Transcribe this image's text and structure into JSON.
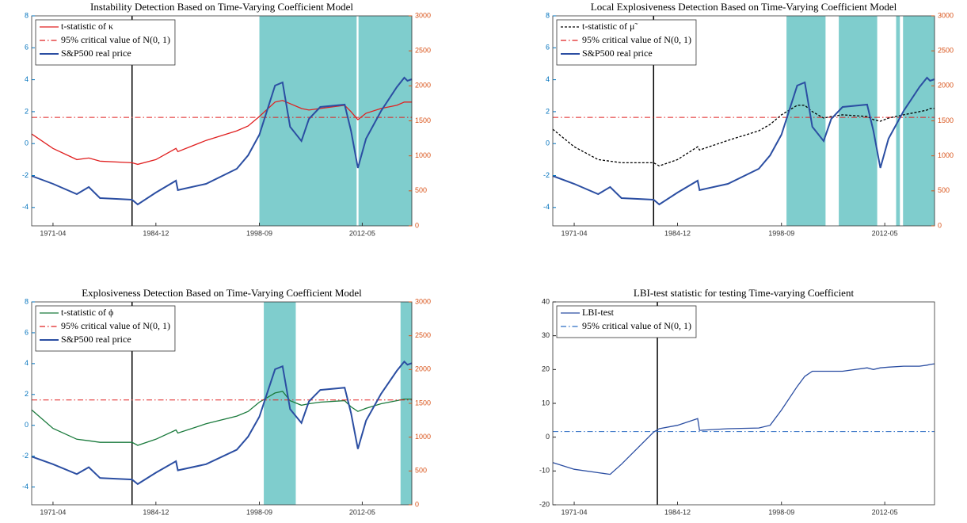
{
  "chart_data": [
    {
      "type": "line",
      "title": "Instability Detection Based on Time-Varying Coefficient Model",
      "x": [
        "1968-06",
        "1971-04",
        "1974-06",
        "1976-01",
        "1977-07",
        "1981-10",
        "1982-07",
        "1984-12",
        "1987-08",
        "1987-11",
        "1991-08",
        "1995-09",
        "1997-03",
        "1998-09",
        "2000-10",
        "2001-10",
        "2002-10",
        "2004-04",
        "2005-04",
        "2006-10",
        "2010-01",
        "2010-11",
        "2011-10",
        "2012-11",
        "2014-11",
        "2016-12",
        "2017-12",
        "2018-05",
        "2018-12"
      ],
      "xlim": [
        "1968-06",
        "2018-12"
      ],
      "xticks": [
        "1971-04",
        "1984-12",
        "1998-09",
        "2012-05"
      ],
      "ylim": [
        -5.15,
        8
      ],
      "yticks": [
        -4,
        -2,
        0,
        2,
        4,
        6,
        8
      ],
      "y2lim": [
        0,
        3000
      ],
      "y2ticks": [
        0,
        500,
        1000,
        1500,
        2000,
        2500,
        3000
      ],
      "left_axis_color": "#0072bd",
      "right_axis_color": "#d95319",
      "vline": "1981-10",
      "shade_color": "#7fcdcd",
      "shaded": [
        [
          "1998-09",
          "2011-08"
        ],
        [
          "2011-11",
          "2018-12"
        ]
      ],
      "series": [
        {
          "name": "t-statistic of κ",
          "color": "#e02020",
          "values": [
            0.6,
            -0.3,
            -1.0,
            -0.9,
            -1.1,
            -1.2,
            -1.3,
            -1.0,
            -0.3,
            -0.5,
            0.2,
            0.8,
            1.1,
            1.7,
            2.6,
            2.7,
            2.5,
            2.2,
            2.1,
            2.2,
            2.4,
            2.0,
            1.5,
            1.9,
            2.2,
            2.4,
            2.6,
            2.6,
            2.6
          ]
        },
        {
          "name": "95% critical value of N(0, 1)",
          "color": "#e02020",
          "style": "dashdot",
          "value": 1.645
        },
        {
          "name": "S&P500 real price",
          "color": "#2b4ea2",
          "axis": "y2",
          "values": [
            713,
            600,
            453,
            555,
            396,
            374,
            306,
            475,
            645,
            510,
            600,
            815,
            1008,
            1302,
            2004,
            2049,
            1415,
            1211,
            1528,
            1698,
            1732,
            1358,
            826,
            1245,
            1642,
            1981,
            2117,
            2072,
            2094
          ]
        }
      ]
    },
    {
      "type": "line",
      "title": "Local Explosiveness Detection Based on Time-Varying Coefficient Model",
      "x": [
        "1968-06",
        "1971-04",
        "1974-06",
        "1976-01",
        "1977-07",
        "1981-10",
        "1982-07",
        "1984-12",
        "1987-08",
        "1987-11",
        "1991-08",
        "1995-09",
        "1997-03",
        "1998-09",
        "2000-10",
        "2001-10",
        "2002-10",
        "2004-04",
        "2005-04",
        "2006-10",
        "2010-01",
        "2010-11",
        "2011-10",
        "2012-11",
        "2014-11",
        "2016-12",
        "2017-12",
        "2018-05",
        "2018-12"
      ],
      "xlim": [
        "1968-06",
        "2018-12"
      ],
      "xticks": [
        "1971-04",
        "1984-12",
        "1998-09",
        "2012-05"
      ],
      "ylim": [
        -5.15,
        8
      ],
      "yticks": [
        -4,
        -2,
        0,
        2,
        4,
        6,
        8
      ],
      "y2lim": [
        0,
        3000
      ],
      "y2ticks": [
        0,
        500,
        1000,
        1500,
        2000,
        2500,
        3000
      ],
      "left_axis_color": "#0072bd",
      "right_axis_color": "#d95319",
      "vline": "1981-10",
      "shade_color": "#7fcdcd",
      "shaded": [
        [
          "1999-05",
          "2004-07"
        ],
        [
          "2006-04",
          "2011-05"
        ],
        [
          "2013-11",
          "2014-05"
        ],
        [
          "2014-10",
          "2018-12"
        ]
      ],
      "series": [
        {
          "name": "t-statistic of μ̃",
          "color": "#000000",
          "style": "dashed",
          "values": [
            0.9,
            -0.2,
            -1.0,
            -1.1,
            -1.2,
            -1.2,
            -1.4,
            -1.0,
            -0.2,
            -0.4,
            0.2,
            0.8,
            1.2,
            1.8,
            2.4,
            2.4,
            2.0,
            1.6,
            1.7,
            1.8,
            1.7,
            1.5,
            1.4,
            1.6,
            1.8,
            2.0,
            2.1,
            2.2,
            2.2
          ]
        },
        {
          "name": "95% critical value of N(0, 1)",
          "color": "#e02020",
          "style": "dashdot",
          "value": 1.645
        },
        {
          "name": "S&P500 real price",
          "color": "#2b4ea2",
          "axis": "y2",
          "values": [
            713,
            600,
            453,
            555,
            396,
            374,
            306,
            475,
            645,
            510,
            600,
            815,
            1008,
            1302,
            2004,
            2049,
            1415,
            1211,
            1528,
            1698,
            1732,
            1358,
            826,
            1245,
            1642,
            1981,
            2117,
            2072,
            2094
          ]
        }
      ]
    },
    {
      "type": "line",
      "title": "Explosiveness Detection Based on Time-Varying Coefficient Model",
      "x": [
        "1968-06",
        "1971-04",
        "1974-06",
        "1976-01",
        "1977-07",
        "1981-10",
        "1982-07",
        "1984-12",
        "1987-08",
        "1987-11",
        "1991-08",
        "1995-09",
        "1997-03",
        "1998-09",
        "2000-10",
        "2001-10",
        "2002-10",
        "2004-04",
        "2005-04",
        "2006-10",
        "2010-01",
        "2010-11",
        "2011-10",
        "2012-11",
        "2014-11",
        "2016-12",
        "2017-12",
        "2018-05",
        "2018-12"
      ],
      "xlim": [
        "1968-06",
        "2018-12"
      ],
      "xticks": [
        "1971-04",
        "1984-12",
        "1998-09",
        "2012-05"
      ],
      "ylim": [
        -5.15,
        8
      ],
      "yticks": [
        -4,
        -2,
        0,
        2,
        4,
        6,
        8
      ],
      "y2lim": [
        0,
        3000
      ],
      "y2ticks": [
        0,
        500,
        1000,
        1500,
        2000,
        2500,
        3000
      ],
      "left_axis_color": "#0072bd",
      "right_axis_color": "#d95319",
      "vline": "1981-10",
      "shade_color": "#7fcdcd",
      "shaded": [
        [
          "1999-04",
          "2003-07"
        ],
        [
          "2017-06",
          "2018-12"
        ]
      ],
      "series": [
        {
          "name": "t-statistic of ϕ",
          "color": "#1a7a3c",
          "values": [
            1.0,
            -0.2,
            -0.9,
            -1.0,
            -1.1,
            -1.1,
            -1.3,
            -0.9,
            -0.3,
            -0.5,
            0.1,
            0.6,
            0.9,
            1.5,
            2.1,
            2.2,
            1.6,
            1.3,
            1.4,
            1.5,
            1.6,
            1.2,
            0.9,
            1.1,
            1.4,
            1.6,
            1.7,
            1.7,
            1.7
          ]
        },
        {
          "name": "95% critical value of N(0, 1)",
          "color": "#e02020",
          "style": "dashdot",
          "value": 1.645
        },
        {
          "name": "S&P500 real price",
          "color": "#2b4ea2",
          "axis": "y2",
          "values": [
            713,
            600,
            453,
            555,
            396,
            374,
            306,
            475,
            645,
            510,
            600,
            815,
            1008,
            1302,
            2004,
            2049,
            1415,
            1211,
            1528,
            1698,
            1732,
            1358,
            826,
            1245,
            1642,
            1981,
            2117,
            2072,
            2094
          ]
        }
      ]
    },
    {
      "type": "line",
      "title": "LBI-test statistic for testing Time-varying Coefficient",
      "x": [
        "1968-06",
        "1971-04",
        "1974-06",
        "1976-01",
        "1977-07",
        "1981-10",
        "1982-07",
        "1984-12",
        "1987-08",
        "1987-11",
        "1991-08",
        "1995-09",
        "1997-03",
        "1998-09",
        "2000-10",
        "2001-10",
        "2002-10",
        "2004-04",
        "2005-04",
        "2006-10",
        "2010-01",
        "2010-11",
        "2011-10",
        "2012-11",
        "2014-11",
        "2016-12",
        "2017-12",
        "2018-05",
        "2018-12"
      ],
      "xlim": [
        "1968-06",
        "2018-12"
      ],
      "xticks": [
        "1971-04",
        "1984-12",
        "1998-09",
        "2012-05"
      ],
      "ylim": [
        -20,
        40
      ],
      "yticks": [
        -20,
        -10,
        0,
        10,
        20,
        30,
        40
      ],
      "left_axis_color": "#222222",
      "vline": "1982-04",
      "series": [
        {
          "name": "LBI-test",
          "color": "#2b4ea2",
          "values": [
            -7.5,
            -9.5,
            -10.5,
            -11,
            -8,
            1.5,
            2.5,
            3.5,
            5.5,
            2,
            2.5,
            2.7,
            3.5,
            8,
            15,
            18,
            19.5,
            19.5,
            19.5,
            19.5,
            20.5,
            20,
            20.5,
            20.7,
            21,
            21,
            21.3,
            21.5,
            21.7
          ]
        },
        {
          "name": "95% critical value of N(0, 1)",
          "color": "#2b6cc4",
          "style": "dashdot",
          "value": 1.645
        }
      ]
    }
  ]
}
